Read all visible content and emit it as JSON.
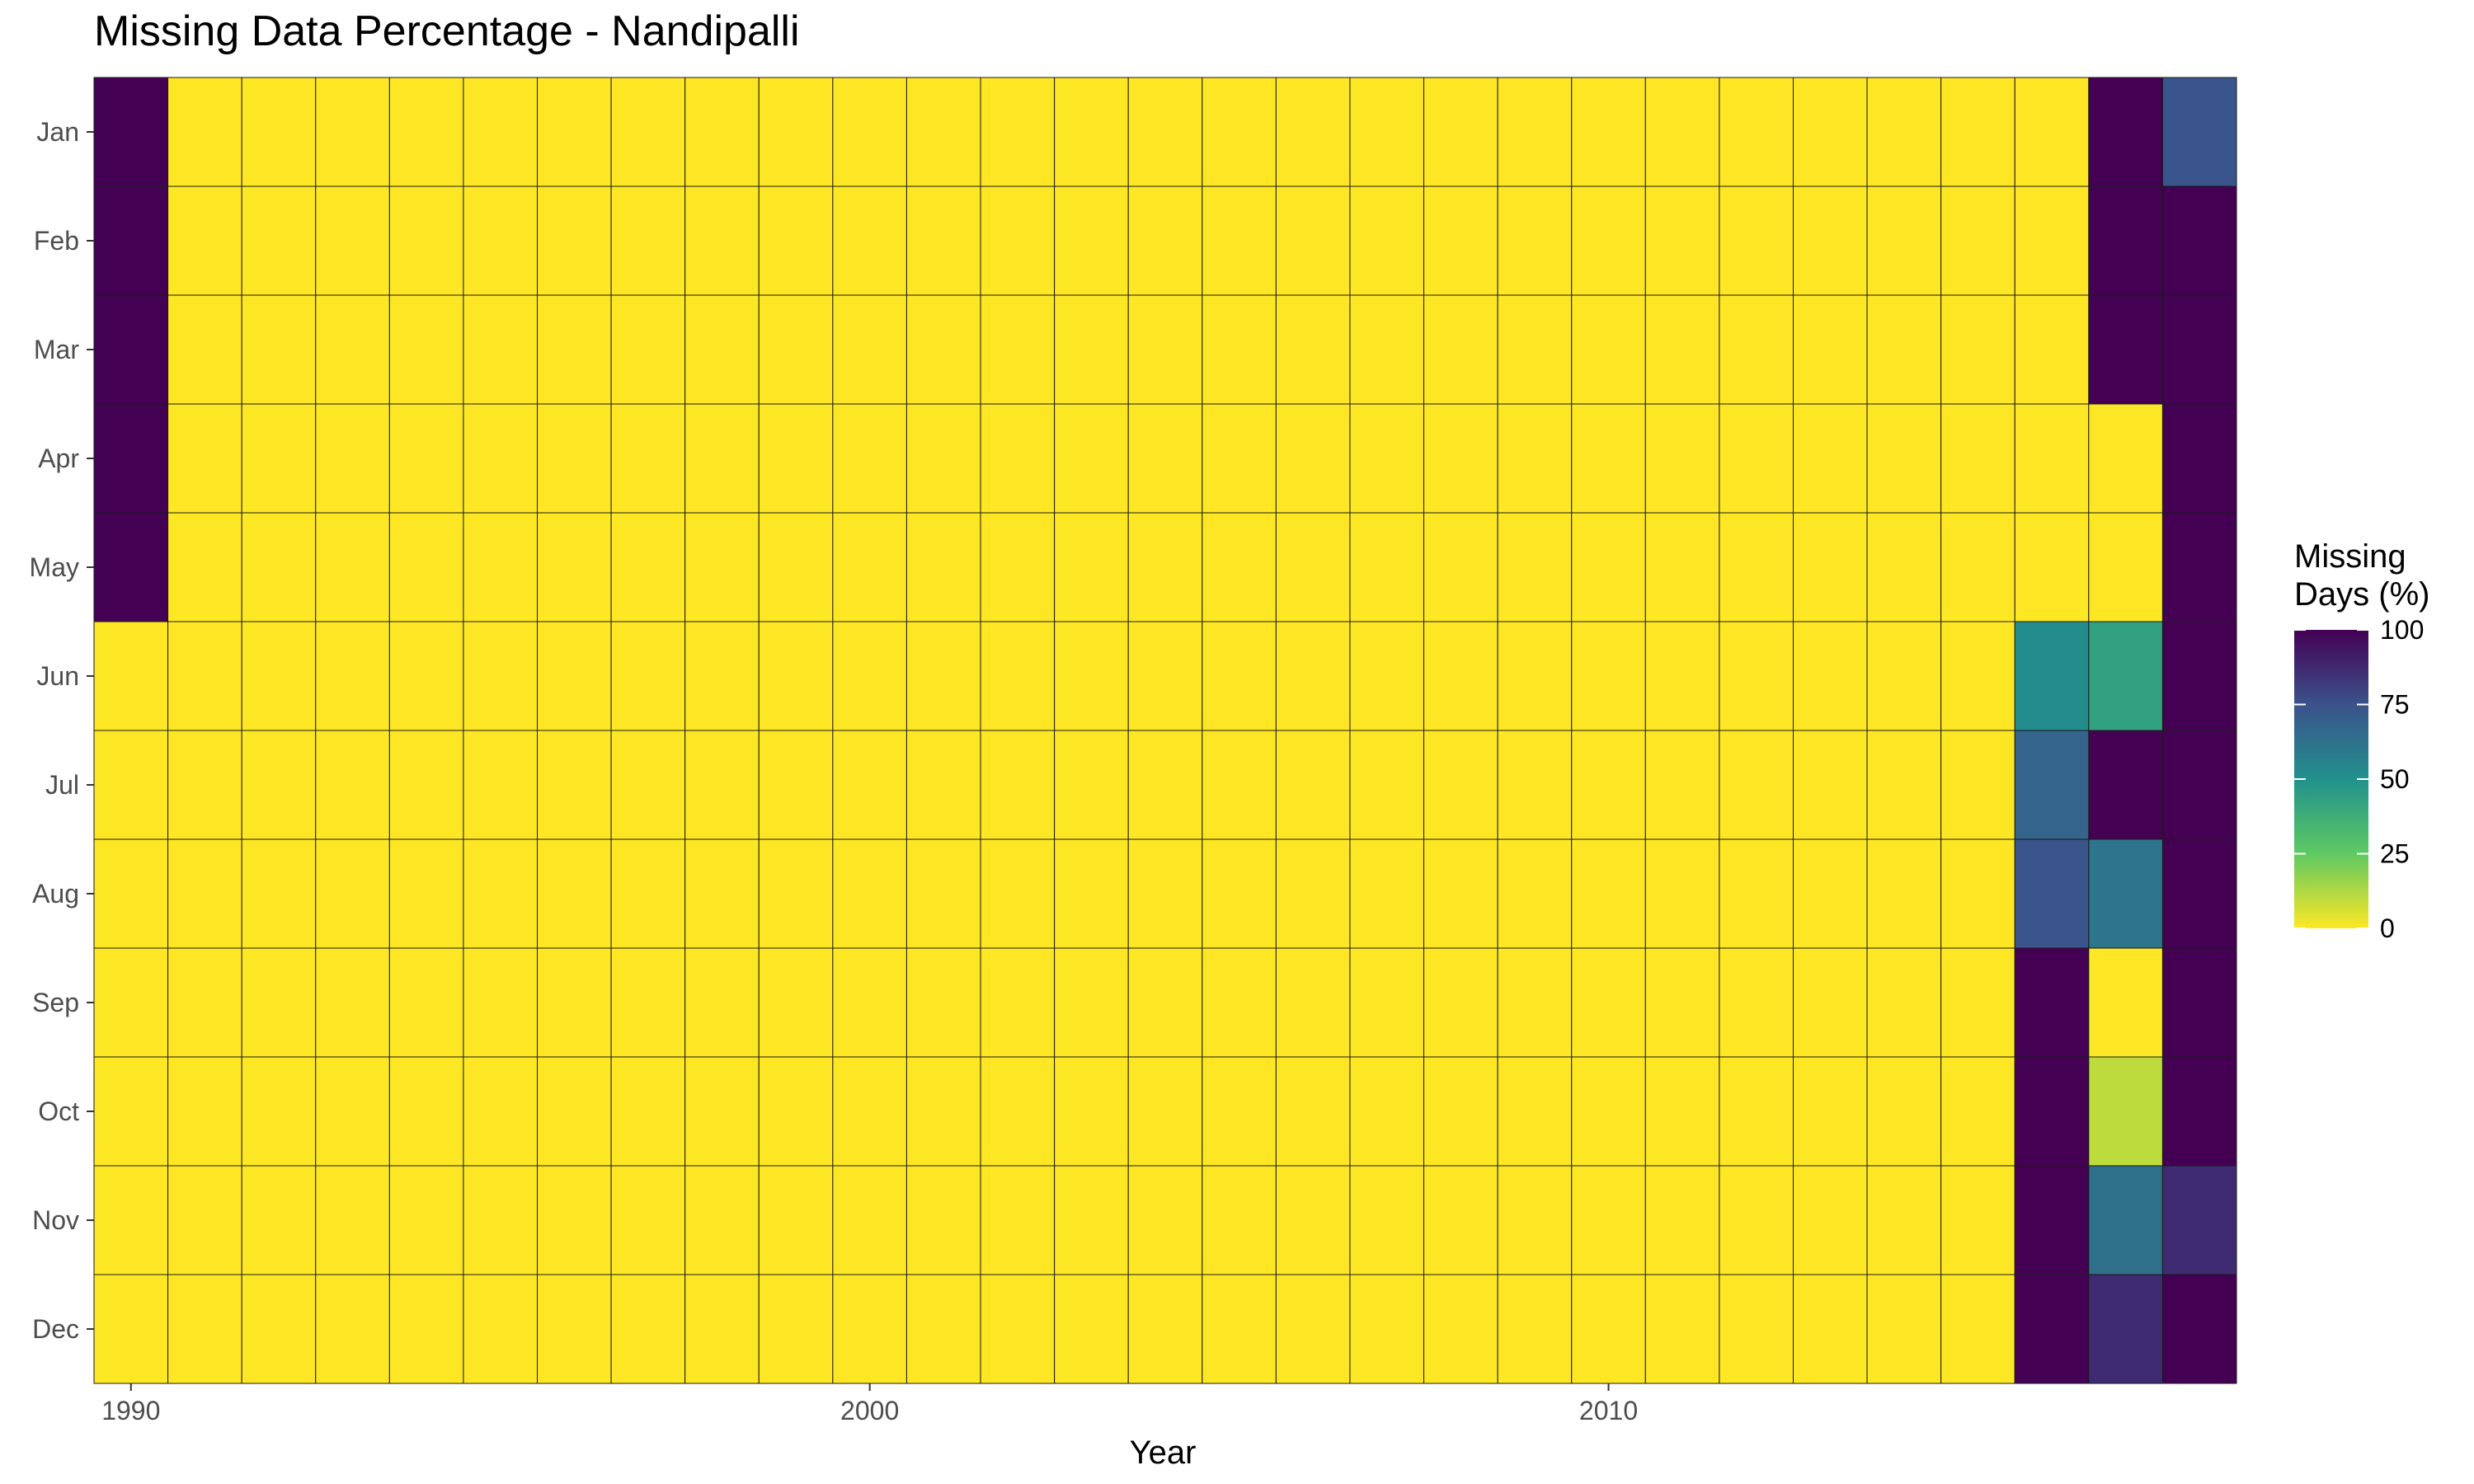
{
  "chart_data": {
    "type": "heatmap",
    "title": "Missing Data Percentage - Nandipalli",
    "xlabel": "Year",
    "ylabel": "",
    "x": [
      1990,
      1991,
      1992,
      1993,
      1994,
      1995,
      1996,
      1997,
      1998,
      1999,
      2000,
      2001,
      2002,
      2003,
      2004,
      2005,
      2006,
      2007,
      2008,
      2009,
      2010,
      2011,
      2012,
      2013,
      2014,
      2015,
      2016,
      2017,
      2018
    ],
    "x_ticks": [
      1990,
      2000,
      2010
    ],
    "y": [
      "Jan",
      "Feb",
      "Mar",
      "Apr",
      "May",
      "Jun",
      "Jul",
      "Aug",
      "Sep",
      "Oct",
      "Nov",
      "Dec"
    ],
    "legend": {
      "title": "Missing\nDays (%)",
      "ticks": [
        100,
        75,
        50,
        25,
        0
      ],
      "placement": "right",
      "colorscale": "viridis (reversed): 0 = yellow, 100 = dark purple"
    },
    "zlim": [
      0,
      100
    ],
    "values": [
      [
        100,
        0,
        0,
        0,
        0,
        0,
        0,
        0,
        0,
        0,
        0,
        0,
        0,
        0,
        0,
        0,
        0,
        0,
        0,
        0,
        0,
        0,
        0,
        0,
        0,
        0,
        0,
        100,
        74
      ],
      [
        100,
        0,
        0,
        0,
        0,
        0,
        0,
        0,
        0,
        0,
        0,
        0,
        0,
        0,
        0,
        0,
        0,
        0,
        0,
        0,
        0,
        0,
        0,
        0,
        0,
        0,
        0,
        100,
        100
      ],
      [
        100,
        0,
        0,
        0,
        0,
        0,
        0,
        0,
        0,
        0,
        0,
        0,
        0,
        0,
        0,
        0,
        0,
        0,
        0,
        0,
        0,
        0,
        0,
        0,
        0,
        0,
        0,
        100,
        100
      ],
      [
        100,
        0,
        0,
        0,
        0,
        0,
        0,
        0,
        0,
        0,
        0,
        0,
        0,
        0,
        0,
        0,
        0,
        0,
        0,
        0,
        0,
        0,
        0,
        0,
        0,
        0,
        0,
        0,
        100
      ],
      [
        100,
        0,
        0,
        0,
        0,
        0,
        0,
        0,
        0,
        0,
        0,
        0,
        0,
        0,
        0,
        0,
        0,
        0,
        0,
        0,
        0,
        0,
        0,
        0,
        0,
        0,
        0,
        0,
        100
      ],
      [
        0,
        0,
        0,
        0,
        0,
        0,
        0,
        0,
        0,
        0,
        0,
        0,
        0,
        0,
        0,
        0,
        0,
        0,
        0,
        0,
        0,
        0,
        0,
        0,
        0,
        0,
        52,
        43,
        100
      ],
      [
        0,
        0,
        0,
        0,
        0,
        0,
        0,
        0,
        0,
        0,
        0,
        0,
        0,
        0,
        0,
        0,
        0,
        0,
        0,
        0,
        0,
        0,
        0,
        0,
        0,
        0,
        68,
        100,
        100
      ],
      [
        0,
        0,
        0,
        0,
        0,
        0,
        0,
        0,
        0,
        0,
        0,
        0,
        0,
        0,
        0,
        0,
        0,
        0,
        0,
        0,
        0,
        0,
        0,
        0,
        0,
        0,
        74,
        61,
        100
      ],
      [
        0,
        0,
        0,
        0,
        0,
        0,
        0,
        0,
        0,
        0,
        0,
        0,
        0,
        0,
        0,
        0,
        0,
        0,
        0,
        0,
        0,
        0,
        0,
        0,
        0,
        0,
        100,
        0,
        100
      ],
      [
        0,
        0,
        0,
        0,
        0,
        0,
        0,
        0,
        0,
        0,
        0,
        0,
        0,
        0,
        0,
        0,
        0,
        0,
        0,
        0,
        0,
        0,
        0,
        0,
        0,
        0,
        100,
        10,
        100
      ],
      [
        0,
        0,
        0,
        0,
        0,
        0,
        0,
        0,
        0,
        0,
        0,
        0,
        0,
        0,
        0,
        0,
        0,
        0,
        0,
        0,
        0,
        0,
        0,
        0,
        0,
        0,
        100,
        63,
        87
      ],
      [
        0,
        0,
        0,
        0,
        0,
        0,
        0,
        0,
        0,
        0,
        0,
        0,
        0,
        0,
        0,
        0,
        0,
        0,
        0,
        0,
        0,
        0,
        0,
        0,
        0,
        0,
        100,
        87,
        100
      ]
    ],
    "grid": true
  }
}
